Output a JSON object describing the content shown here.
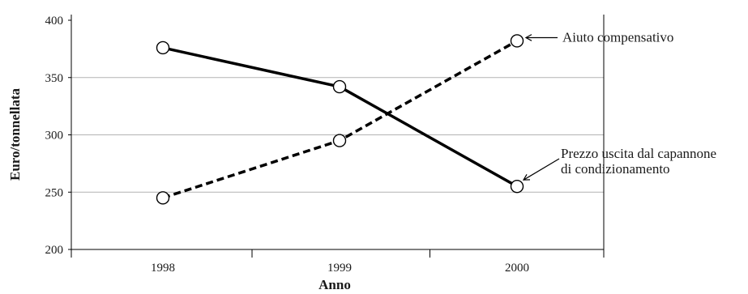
{
  "chart_data": {
    "type": "line",
    "title": "",
    "xlabel": "Anno",
    "ylabel": "Euro/tonnellata",
    "categories": [
      "1998",
      "1999",
      "2000"
    ],
    "ylim": [
      200,
      400
    ],
    "yticks": [
      "200",
      "250",
      "300",
      "350",
      "400"
    ],
    "grid": true,
    "series": [
      {
        "name": "Prezzo uscita dal capannone di condizionamento",
        "style": "solid",
        "values": [
          376,
          342,
          255
        ]
      },
      {
        "name": "Aiuto compensativo",
        "style": "dashed",
        "values": [
          245,
          295,
          382
        ]
      }
    ],
    "annotations": [
      {
        "lines": [
          "Aiuto compensativo"
        ],
        "series": 1
      },
      {
        "lines": [
          "Prezzo uscita dal capannone",
          "di condizionamento"
        ],
        "series": 0
      }
    ],
    "colors": {
      "line": "#000000",
      "grid": "#b3b3b3",
      "marker_fill": "#ffffff"
    }
  }
}
